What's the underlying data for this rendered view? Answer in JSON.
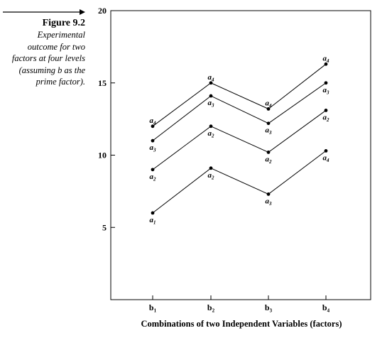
{
  "figure": {
    "label": "Figure 9.2",
    "description_lines": [
      "Experimental",
      "outcome for two",
      "factors at four levels",
      "(assuming b as the",
      "prime factor)."
    ]
  },
  "chart_data": {
    "type": "line",
    "title": "",
    "xlabel": "Combinations of two Independent Variables (factors)",
    "ylabel": "",
    "categories": [
      "b1",
      "b2",
      "b3",
      "b4"
    ],
    "x_tick_labels": [
      {
        "base": "b",
        "sub": "1"
      },
      {
        "base": "b",
        "sub": "2"
      },
      {
        "base": "b",
        "sub": "3"
      },
      {
        "base": "b",
        "sub": "4"
      }
    ],
    "y_ticks": [
      5,
      10,
      15,
      20
    ],
    "ylim": [
      0,
      20
    ],
    "grid": false,
    "legend": "none",
    "series": [
      {
        "values": [
          12,
          15,
          13.2,
          16.3
        ],
        "labels": [
          {
            "base": "a",
            "sub": "4"
          },
          {
            "base": "a",
            "sub": "4"
          },
          {
            "base": "a",
            "sub": "4"
          },
          {
            "base": "a",
            "sub": "4"
          }
        ]
      },
      {
        "values": [
          11,
          14.1,
          12.2,
          15
        ],
        "labels": [
          {
            "base": "a",
            "sub": "3"
          },
          {
            "base": "a",
            "sub": "3"
          },
          {
            "base": "a",
            "sub": "3"
          },
          {
            "base": "a",
            "sub": "3"
          }
        ]
      },
      {
        "values": [
          9,
          12,
          10.2,
          13.1
        ],
        "labels": [
          {
            "base": "a",
            "sub": "2"
          },
          {
            "base": "a",
            "sub": "2"
          },
          {
            "base": "a",
            "sub": "2"
          },
          {
            "base": "a",
            "sub": "2"
          }
        ]
      },
      {
        "values": [
          6,
          9.1,
          7.3,
          10.3
        ],
        "labels": [
          {
            "base": "a",
            "sub": "1"
          },
          {
            "base": "a",
            "sub": "2"
          },
          {
            "base": "a",
            "sub": "3"
          },
          {
            "base": "a",
            "sub": "4"
          }
        ]
      }
    ]
  }
}
